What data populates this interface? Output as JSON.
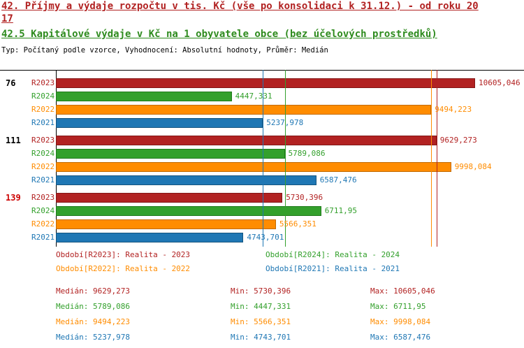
{
  "header": {
    "title_line1": "42. Příjmy a výdaje rozpočtu v tis. Kč (vše po konsolidaci k 31.12.) - od roku 20",
    "title_line2": "17",
    "subtitle": "42.5 Kapitálové výdaje v Kč na 1 obyvatele obce (bez účelových prostředků)",
    "meta": "Typ: Počítaný podle vzorce, Vyhodnocení: Absolutní hodnoty, Průměr: Medián"
  },
  "colors": {
    "title": "#b22222",
    "subtitle": "#2e8b1e",
    "axis": "#000000",
    "R2023": "#b22222",
    "R2024": "#33a02c",
    "R2022": "#ff8c00",
    "R2021": "#1f77b4"
  },
  "colors_border": {
    "R2023": "#821616",
    "R2024": "#1f7a1b",
    "R2022": "#c26a00",
    "R2021": "#14547f"
  },
  "chart_data": {
    "type": "bar",
    "orientation": "horizontal",
    "title": "42. Příjmy a výdaje rozpočtu v tis. Kč (vše po konsolidaci k 31.12.) - od roku 2017",
    "subtitle": "42.5 Kapitálové výdaje v Kč na 1 obyvatele obce (bez účelových prostředků)",
    "xlim": [
      0,
      10605.046
    ],
    "grid": false,
    "legend_position": "bottom",
    "series_order": [
      "R2023",
      "R2024",
      "R2022",
      "R2021"
    ],
    "groups": [
      {
        "label": "76",
        "label_color": "#000000",
        "bars": [
          {
            "series": "R2023",
            "value": 10605.046,
            "label": "10605,046"
          },
          {
            "series": "R2024",
            "value": 4447.331,
            "label": "4447,331"
          },
          {
            "series": "R2022",
            "value": 9494.223,
            "label": "9494,223"
          },
          {
            "series": "R2021",
            "value": 5237.978,
            "label": "5237,978"
          }
        ]
      },
      {
        "label": "111",
        "label_color": "#000000",
        "bars": [
          {
            "series": "R2023",
            "value": 9629.273,
            "label": "9629,273"
          },
          {
            "series": "R2024",
            "value": 5789.086,
            "label": "5789,086"
          },
          {
            "series": "R2022",
            "value": 9998.084,
            "label": "9998,084"
          },
          {
            "series": "R2021",
            "value": 6587.476,
            "label": "6587,476"
          }
        ]
      },
      {
        "label": "139",
        "label_color": "#cc0000",
        "bars": [
          {
            "series": "R2023",
            "value": 5730.396,
            "label": "5730,396"
          },
          {
            "series": "R2024",
            "value": 6711.95,
            "label": "6711,95"
          },
          {
            "series": "R2022",
            "value": 5566.351,
            "label": "5566,351"
          },
          {
            "series": "R2021",
            "value": 4743.701,
            "label": "4743,701"
          }
        ]
      }
    ],
    "medians": [
      {
        "series": "R2023",
        "value": 9629.273
      },
      {
        "series": "R2024",
        "value": 5789.086
      },
      {
        "series": "R2022",
        "value": 9494.223
      },
      {
        "series": "R2021",
        "value": 5237.978
      }
    ]
  },
  "legend": {
    "items": [
      {
        "series": "R2023",
        "text": "Období[R2023]: Realita - 2023"
      },
      {
        "series": "R2024",
        "text": "Období[R2024]: Realita - 2024"
      },
      {
        "series": "R2022",
        "text": "Období[R2022]: Realita - 2022"
      },
      {
        "series": "R2021",
        "text": "Období[R2021]: Realita - 2021"
      }
    ]
  },
  "stats": {
    "rows": [
      {
        "series": "R2023",
        "median": "Medián: 9629,273",
        "min": "Min: 5730,396",
        "max": "Max: 10605,046"
      },
      {
        "series": "R2024",
        "median": "Medián: 5789,086",
        "min": "Min: 4447,331",
        "max": "Max: 6711,95"
      },
      {
        "series": "R2022",
        "median": "Medián: 9494,223",
        "min": "Min: 5566,351",
        "max": "Max: 9998,084"
      },
      {
        "series": "R2021",
        "median": "Medián: 5237,978",
        "min": "Min: 4743,701",
        "max": "Max: 6587,476"
      }
    ]
  }
}
